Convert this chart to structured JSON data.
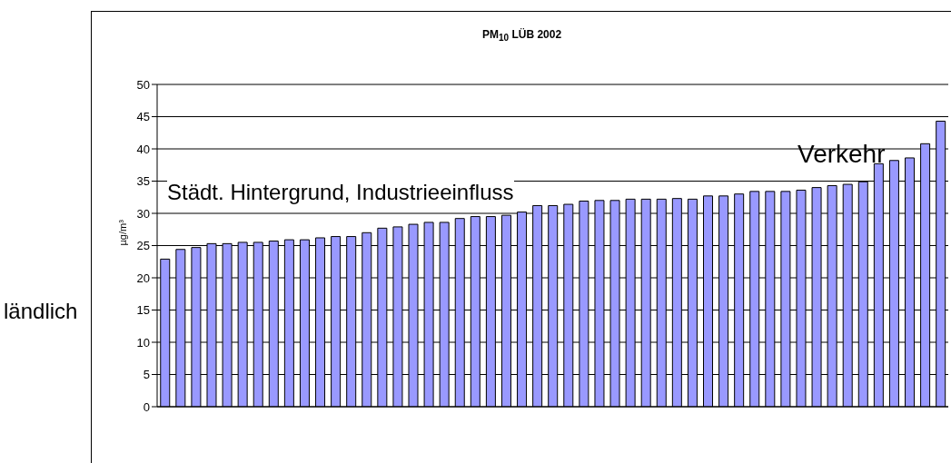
{
  "chart_data": {
    "type": "bar",
    "title": "PM$_{10}$ LÜB 2002",
    "ylabel": "µg/m³",
    "categories": [
      null,
      null,
      null,
      null,
      null,
      null,
      null,
      null,
      null,
      null,
      null,
      null,
      null,
      null,
      null,
      null,
      null,
      null,
      null,
      null,
      null,
      null,
      null,
      null,
      null,
      null,
      null,
      null,
      null,
      null,
      null,
      null,
      null,
      null,
      null,
      null,
      null,
      null,
      null,
      null,
      null,
      null,
      null,
      null,
      null,
      null,
      null,
      null,
      null,
      null,
      null
    ],
    "values": [
      22.9,
      24.4,
      24.7,
      25.3,
      25.3,
      25.5,
      25.5,
      25.7,
      25.9,
      25.9,
      26.2,
      26.4,
      26.4,
      27.0,
      27.7,
      27.9,
      28.3,
      28.6,
      28.6,
      29.2,
      29.5,
      29.5,
      29.7,
      30.2,
      31.2,
      31.2,
      31.4,
      31.9,
      32.0,
      32.0,
      32.2,
      32.2,
      32.2,
      32.3,
      32.2,
      32.7,
      32.7,
      33.0,
      33.4,
      33.4,
      33.4,
      33.6,
      34.0,
      34.3,
      34.5,
      34.9,
      37.7,
      38.2,
      38.6,
      40.8,
      44.3
    ],
    "color": "#9999ff",
    "ylim": [
      0,
      50
    ],
    "yticks": [
      0,
      5,
      10,
      15,
      20,
      25,
      30,
      35,
      40,
      45,
      50
    ],
    "grid": "y",
    "annotations": [
      "ländlich",
      "Städt. Hintergrund, Industrieeinfluss",
      "Verkehr"
    ]
  }
}
